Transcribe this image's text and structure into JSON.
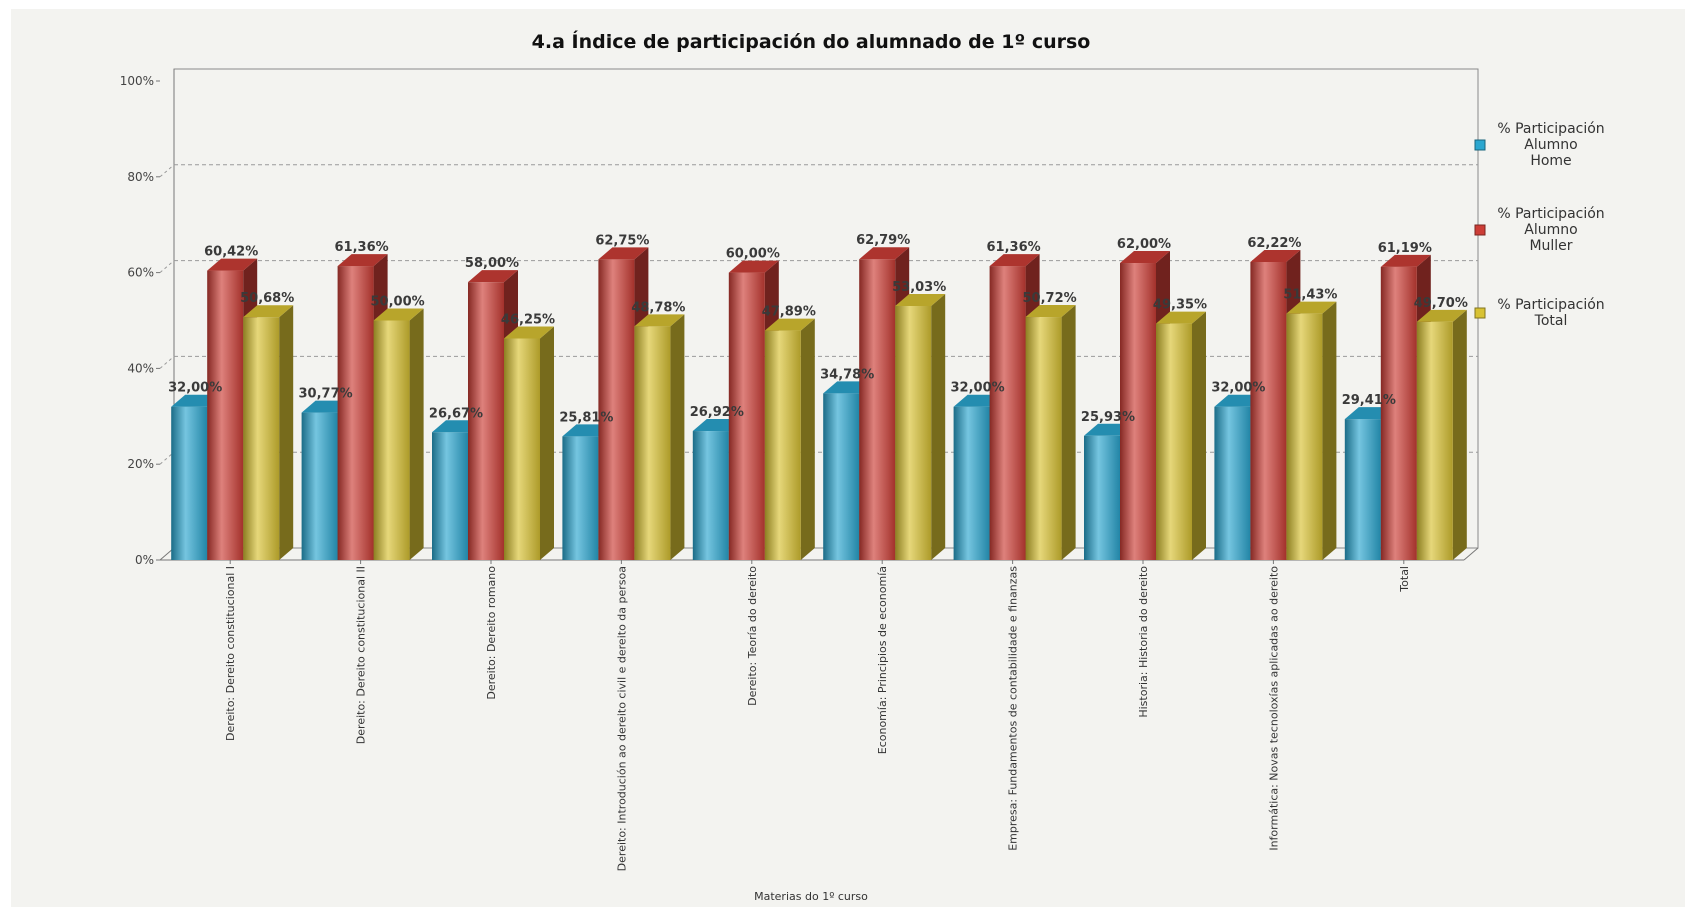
{
  "chart_data": {
    "type": "bar",
    "title": "4.a Índice de participación do alumnado de 1º curso",
    "xlabel": "Materias do 1º curso",
    "ylabel": "",
    "ylim": [
      0,
      100
    ],
    "yticks": [
      "0%",
      "20%",
      "40%",
      "60%",
      "80%",
      "100%"
    ],
    "grid": true,
    "legend_position": "right",
    "categories": [
      "Dereito: Dereito constitucional I",
      "Dereito: Dereito constitucional II",
      "Dereito: Dereito romano",
      "Dereito: Introdución ao dereito civil e dereito da persoa",
      "Dereito: Teoría do dereito",
      "Economía: Principios de economía",
      "Empresa: Fundamentos de contabilidade e finanzas",
      "Historia: Historia do dereito",
      "Informática: Novas tecnoloxías aplicadas ao dereito",
      "Total"
    ],
    "series": [
      {
        "name": [
          "% Participación",
          "Alumno",
          "Home"
        ],
        "color": "#2aa6cf",
        "values": [
          32.0,
          30.77,
          26.67,
          25.81,
          26.92,
          34.78,
          32.0,
          25.93,
          32.0,
          29.41
        ],
        "labels": [
          "32,00%",
          "30,77%",
          "26,67%",
          "25,81%",
          "26,92%",
          "34,78%",
          "32,00%",
          "25,93%",
          "32,00%",
          "29,41%"
        ]
      },
      {
        "name": [
          "% Participación",
          "Alumno",
          "Muller"
        ],
        "color": "#cc3d36",
        "values": [
          60.42,
          61.36,
          58.0,
          62.75,
          60.0,
          62.79,
          61.36,
          62.0,
          62.22,
          61.19
        ],
        "labels": [
          "60,42%",
          "61,36%",
          "58,00%",
          "62,75%",
          "60,00%",
          "62,79%",
          "61,36%",
          "62,00%",
          "62,22%",
          "61,19%"
        ]
      },
      {
        "name": [
          "% Participación",
          "Total"
        ],
        "color": "#d8c233",
        "values": [
          50.68,
          50.0,
          46.25,
          48.78,
          47.89,
          53.03,
          50.72,
          49.35,
          51.43,
          49.7
        ],
        "labels": [
          "50,68%",
          "50,00%",
          "46,25%",
          "48,78%",
          "47,89%",
          "53,03%",
          "50,72%",
          "49,35%",
          "51,43%",
          "49,70%"
        ]
      }
    ]
  }
}
